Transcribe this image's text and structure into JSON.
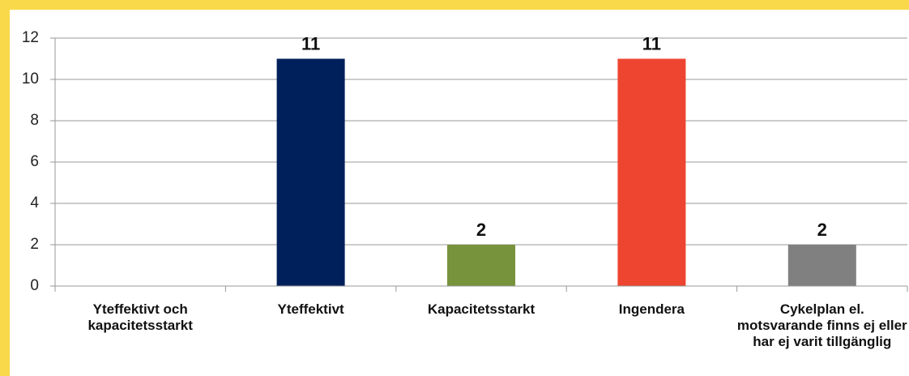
{
  "chart_data": {
    "type": "bar",
    "categories": [
      "Yteffektivt och kapacitetsstarkt",
      "Yteffektivt",
      "Kapacitetsstarkt",
      "Ingendera",
      "Cykelplan el. motsvarande finns ej eller har ej varit tillgänglig"
    ],
    "values": [
      null,
      11,
      2,
      11,
      2
    ],
    "colors": [
      null,
      "#00205b",
      "#77933c",
      "#ee4530",
      "#808080"
    ],
    "ylim": [
      0,
      12
    ],
    "yticks": [
      0,
      2,
      4,
      6,
      8,
      10,
      12
    ],
    "grid": true
  }
}
